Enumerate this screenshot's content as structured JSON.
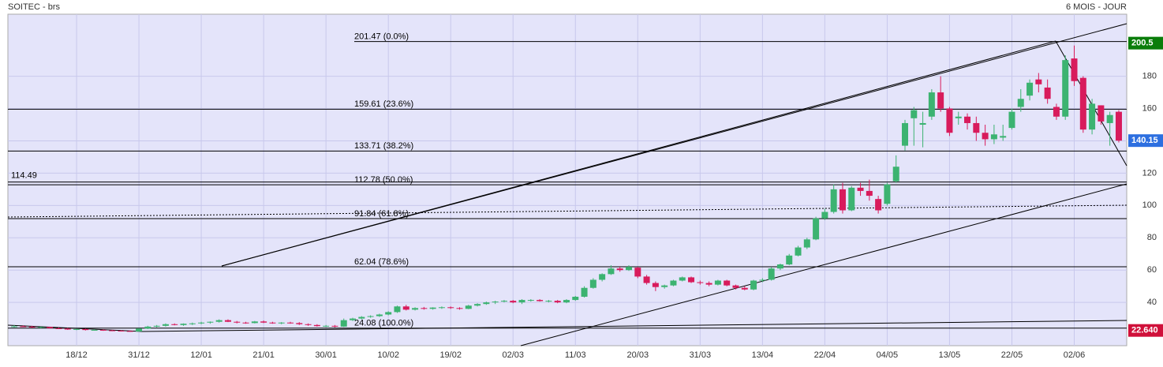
{
  "chart_data": {
    "type": "candlestick",
    "title": "SOITEC - brs",
    "subtitle": "6 MOIS - JOUR",
    "ylim": [
      13.2,
      218.4
    ],
    "yticks": [
      40,
      60,
      80,
      100,
      120,
      140,
      160,
      180
    ],
    "grid": true,
    "up_color": "#3cb371",
    "down_color": "#d81b5c",
    "categories": [
      null,
      null,
      null,
      null,
      null,
      null,
      null,
      "18/12",
      null,
      null,
      null,
      null,
      null,
      null,
      "31/12",
      null,
      null,
      null,
      null,
      null,
      null,
      "12/01",
      null,
      null,
      null,
      null,
      null,
      null,
      "21/01",
      null,
      null,
      null,
      null,
      null,
      null,
      "30/01",
      null,
      null,
      null,
      null,
      null,
      null,
      "10/02",
      null,
      null,
      null,
      null,
      null,
      null,
      "19/02",
      null,
      null,
      null,
      null,
      null,
      null,
      "02/03",
      null,
      null,
      null,
      null,
      null,
      null,
      "11/03",
      null,
      null,
      null,
      null,
      null,
      null,
      "20/03",
      null,
      null,
      null,
      null,
      null,
      null,
      "31/03",
      null,
      null,
      null,
      null,
      null,
      null,
      "13/04",
      null,
      null,
      null,
      null,
      null,
      null,
      "22/04",
      null,
      null,
      null,
      null,
      null,
      null,
      "04/05",
      null,
      null,
      null,
      null,
      null,
      null,
      "13/05",
      null,
      null,
      null,
      null,
      null,
      null,
      "22/05",
      null,
      null,
      null,
      null,
      null,
      null,
      "02/06",
      null,
      null,
      null,
      null,
      null
    ],
    "candles": [
      [
        25,
        26,
        24.5,
        25.2
      ],
      [
        25.2,
        25.8,
        24.8,
        25
      ],
      [
        25,
        25.5,
        24.2,
        24.5
      ],
      [
        24.5,
        25,
        24,
        24.8
      ],
      [
        24.8,
        25,
        23.8,
        24
      ],
      [
        24,
        24.5,
        23.5,
        23.8
      ],
      [
        23.8,
        24.2,
        23,
        23.2
      ],
      [
        23.2,
        23.8,
        22.8,
        23.5
      ],
      [
        23.5,
        23.8,
        22.6,
        22.9
      ],
      [
        22.9,
        23.4,
        22.5,
        23
      ],
      [
        23,
        23.3,
        22.4,
        22.7
      ],
      [
        22.7,
        23,
        22.2,
        22.5
      ],
      [
        22.5,
        22.8,
        22,
        22.3
      ],
      [
        22.3,
        22.6,
        21.8,
        22
      ],
      [
        22,
        24,
        21.8,
        23.8
      ],
      [
        23.8,
        25.5,
        23.5,
        25
      ],
      [
        25,
        26,
        24.5,
        25.5
      ],
      [
        25.5,
        27,
        25,
        26.5
      ],
      [
        26.5,
        27,
        25.8,
        26
      ],
      [
        26,
        27,
        25.5,
        26.8
      ],
      [
        26.8,
        27.5,
        26,
        27
      ],
      [
        27,
        28,
        26.5,
        27.5
      ],
      [
        27.5,
        28.2,
        26.8,
        28
      ],
      [
        28,
        29.5,
        27.5,
        29
      ],
      [
        29,
        29.5,
        27.8,
        28
      ],
      [
        28,
        28.5,
        27,
        27.5
      ],
      [
        27.5,
        28,
        26.8,
        27.2
      ],
      [
        27.2,
        28.5,
        27,
        28.2
      ],
      [
        28.2,
        28.8,
        27.2,
        27.5
      ],
      [
        27.5,
        28,
        26.8,
        27
      ],
      [
        27,
        27.8,
        26.5,
        27.5
      ],
      [
        27.5,
        28,
        26.8,
        27.2
      ],
      [
        27.2,
        27.8,
        26,
        26.5
      ],
      [
        26.5,
        27,
        25.5,
        26
      ],
      [
        26,
        26.5,
        25,
        25.3
      ],
      [
        25.3,
        26,
        24.8,
        25.5
      ],
      [
        25.5,
        26,
        24.5,
        25
      ],
      [
        25,
        30,
        24.8,
        29
      ],
      [
        29,
        30.5,
        28.5,
        30
      ],
      [
        30,
        31.5,
        29.5,
        31
      ],
      [
        31,
        32,
        30.5,
        31.5
      ],
      [
        31.5,
        33,
        31,
        32.5
      ],
      [
        32.5,
        34.5,
        32,
        34
      ],
      [
        34,
        38,
        33.5,
        37.5
      ],
      [
        37.5,
        38.5,
        35,
        35.5
      ],
      [
        35.5,
        37,
        35,
        36.5
      ],
      [
        36.5,
        37.2,
        35.5,
        36
      ],
      [
        36,
        37,
        35.5,
        36.8
      ],
      [
        36.8,
        37.5,
        36,
        37
      ],
      [
        37,
        37.5,
        36,
        36.5
      ],
      [
        36.5,
        37,
        35.5,
        36
      ],
      [
        36,
        38.5,
        35.8,
        38
      ],
      [
        38,
        39.5,
        37.5,
        39
      ],
      [
        39,
        40.5,
        38.5,
        40
      ],
      [
        40,
        41,
        39,
        40.5
      ],
      [
        40.5,
        41.5,
        40,
        41
      ],
      [
        41,
        41.5,
        39.5,
        40
      ],
      [
        40,
        42,
        39,
        41.5
      ],
      [
        41.5,
        42,
        40.5,
        41.5
      ],
      [
        41.5,
        42,
        40.5,
        40.8
      ],
      [
        40.8,
        41.5,
        40,
        41
      ],
      [
        41,
        41.5,
        39.5,
        40
      ],
      [
        40,
        42,
        39.5,
        41.5
      ],
      [
        41.5,
        44,
        41,
        43.5
      ],
      [
        43.5,
        50,
        43,
        49
      ],
      [
        49,
        55,
        48.5,
        54
      ],
      [
        54,
        58,
        53,
        57.5
      ],
      [
        57.5,
        63,
        57,
        61
      ],
      [
        61,
        62,
        59,
        60
      ],
      [
        60,
        63,
        59.5,
        62
      ],
      [
        61.5,
        62,
        55,
        56
      ],
      [
        56,
        57,
        51,
        52
      ],
      [
        52,
        53,
        47,
        49.5
      ],
      [
        49.5,
        51,
        48.5,
        50.5
      ],
      [
        50.5,
        54,
        50,
        53.5
      ],
      [
        53.5,
        56,
        53,
        55.5
      ],
      [
        55.5,
        56,
        52,
        52.5
      ],
      [
        52.5,
        53.5,
        51,
        52
      ],
      [
        52,
        53,
        50,
        51
      ],
      [
        51,
        54,
        50.5,
        53.5
      ],
      [
        53.5,
        54,
        50,
        50.5
      ],
      [
        50.5,
        51,
        48,
        49
      ],
      [
        49,
        50,
        47.5,
        48
      ],
      [
        48,
        54,
        47.5,
        53.5
      ],
      [
        53.5,
        55,
        52.5,
        54
      ],
      [
        54,
        62,
        53.5,
        61
      ],
      [
        61,
        64,
        60,
        63.5
      ],
      [
        63.5,
        70,
        63,
        69
      ],
      [
        69,
        75,
        68.5,
        74
      ],
      [
        74,
        80,
        73,
        79
      ],
      [
        79,
        93,
        78.5,
        92
      ],
      [
        92,
        98,
        91,
        96
      ],
      [
        96,
        113,
        95,
        110
      ],
      [
        110,
        114,
        95,
        97
      ],
      [
        97,
        112,
        96.5,
        111
      ],
      [
        111,
        114,
        106,
        109
      ],
      [
        109,
        116,
        103,
        106
      ],
      [
        104,
        106,
        95,
        97
      ],
      [
        101,
        114,
        100,
        113
      ],
      [
        115,
        131,
        114,
        124
      ],
      [
        137,
        153,
        134,
        151
      ],
      [
        154,
        161,
        137,
        159
      ],
      [
        150,
        158,
        136,
        151
      ],
      [
        155,
        172,
        153,
        170
      ],
      [
        170,
        180,
        158,
        160
      ],
      [
        160,
        161,
        143,
        145
      ],
      [
        154,
        158,
        150,
        155
      ],
      [
        155,
        157,
        147,
        151
      ],
      [
        151,
        155,
        140,
        145
      ],
      [
        145,
        150,
        137,
        141
      ],
      [
        141,
        150,
        138,
        144
      ],
      [
        142,
        150,
        140,
        143
      ],
      [
        148,
        160,
        147,
        158
      ],
      [
        161,
        172,
        158,
        166
      ],
      [
        168,
        178,
        165,
        176
      ],
      [
        178,
        182,
        170,
        175
      ],
      [
        173,
        178,
        163,
        166
      ],
      [
        161,
        163,
        153,
        155
      ],
      [
        155,
        193,
        153,
        190
      ],
      [
        191,
        199,
        174,
        177
      ],
      [
        179,
        180,
        145,
        147
      ],
      [
        147,
        166,
        144,
        163
      ],
      [
        162,
        162,
        150,
        152
      ],
      [
        151,
        158,
        137,
        156
      ],
      [
        158,
        159,
        139,
        140.15
      ]
    ],
    "fib_levels": [
      {
        "value": 201.47,
        "label": "201.47  (0.0%)"
      },
      {
        "value": 159.61,
        "label": "159.61  (23.6%)"
      },
      {
        "value": 133.71,
        "label": "133.71  (38.2%)"
      },
      {
        "value": 112.78,
        "label": "112.78  (50.0%)"
      },
      {
        "value": 91.84,
        "label": "91.84  (61.8%)"
      },
      {
        "value": 62.04,
        "label": "62.04  (78.6%)"
      },
      {
        "value": 24.08,
        "label": "24.08  (100.0%)"
      }
    ],
    "marker_level": 114.49,
    "price_tags": [
      {
        "value": 200.5,
        "color": "#0a7d0a"
      },
      {
        "value": 140.15,
        "color": "#2d6fe0"
      },
      {
        "value": 22.64,
        "label": "22.640",
        "color": "#d0103a"
      }
    ]
  }
}
